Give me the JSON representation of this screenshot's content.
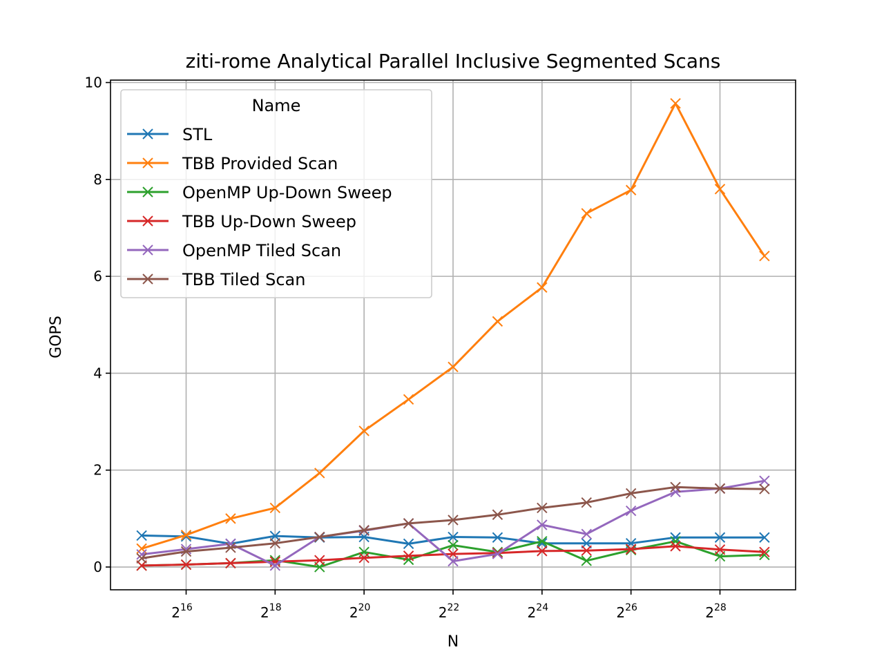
{
  "chart_data": {
    "type": "line",
    "title": "ziti-rome Analytical Parallel Inclusive Segmented Scans",
    "xlabel": "N",
    "ylabel": "GOPS",
    "x_scale": "log2",
    "x": [
      32768,
      65536,
      131072,
      262144,
      524288,
      1048576,
      2097152,
      4194304,
      8388608,
      16777216,
      33554432,
      67108864,
      134217728,
      268435456,
      536870912
    ],
    "xticks": [
      {
        "value": 65536,
        "base": "2",
        "exp": "16"
      },
      {
        "value": 262144,
        "base": "2",
        "exp": "18"
      },
      {
        "value": 1048576,
        "base": "2",
        "exp": "20"
      },
      {
        "value": 4194304,
        "base": "2",
        "exp": "22"
      },
      {
        "value": 16777216,
        "base": "2",
        "exp": "24"
      },
      {
        "value": 67108864,
        "base": "2",
        "exp": "26"
      },
      {
        "value": 268435456,
        "base": "2",
        "exp": "28"
      }
    ],
    "yticks": [
      "0",
      "2",
      "4",
      "6",
      "8",
      "10"
    ],
    "ylim": [
      -0.47,
      10.05
    ],
    "grid": true,
    "legend": {
      "title": "Name",
      "placement": "top-left"
    },
    "series": [
      {
        "name": "STL",
        "color": "#1f77b4",
        "values": [
          0.65,
          0.63,
          0.48,
          0.64,
          0.61,
          0.62,
          0.48,
          0.62,
          0.61,
          0.49,
          0.49,
          0.49,
          0.61,
          0.61,
          0.61
        ]
      },
      {
        "name": "TBB Provided Scan",
        "color": "#ff7f0e",
        "values": [
          0.38,
          0.66,
          1.0,
          1.22,
          1.94,
          2.81,
          3.46,
          4.13,
          5.07,
          5.77,
          7.3,
          7.78,
          9.57,
          7.8,
          6.42
        ]
      },
      {
        "name": "OpenMP Up-Down Sweep",
        "color": "#2ca02c",
        "values": [
          0.03,
          0.05,
          0.08,
          0.14,
          0.0,
          0.31,
          0.15,
          0.45,
          0.31,
          0.53,
          0.13,
          0.35,
          0.53,
          0.22,
          0.25
        ]
      },
      {
        "name": "TBB Up-Down Sweep",
        "color": "#d62728",
        "values": [
          0.03,
          0.05,
          0.08,
          0.11,
          0.14,
          0.19,
          0.23,
          0.27,
          0.29,
          0.33,
          0.34,
          0.37,
          0.43,
          0.36,
          0.31
        ]
      },
      {
        "name": "OpenMP Tiled Scan",
        "color": "#9467bd",
        "values": [
          0.26,
          0.37,
          0.48,
          0.03,
          0.62,
          0.75,
          0.9,
          0.12,
          0.27,
          0.87,
          0.68,
          1.16,
          1.55,
          1.62,
          1.78
        ]
      },
      {
        "name": "TBB Tiled Scan",
        "color": "#8c564b",
        "values": [
          0.18,
          0.32,
          0.4,
          0.49,
          0.62,
          0.76,
          0.9,
          0.97,
          1.08,
          1.22,
          1.33,
          1.52,
          1.65,
          1.62,
          1.61
        ]
      }
    ]
  }
}
